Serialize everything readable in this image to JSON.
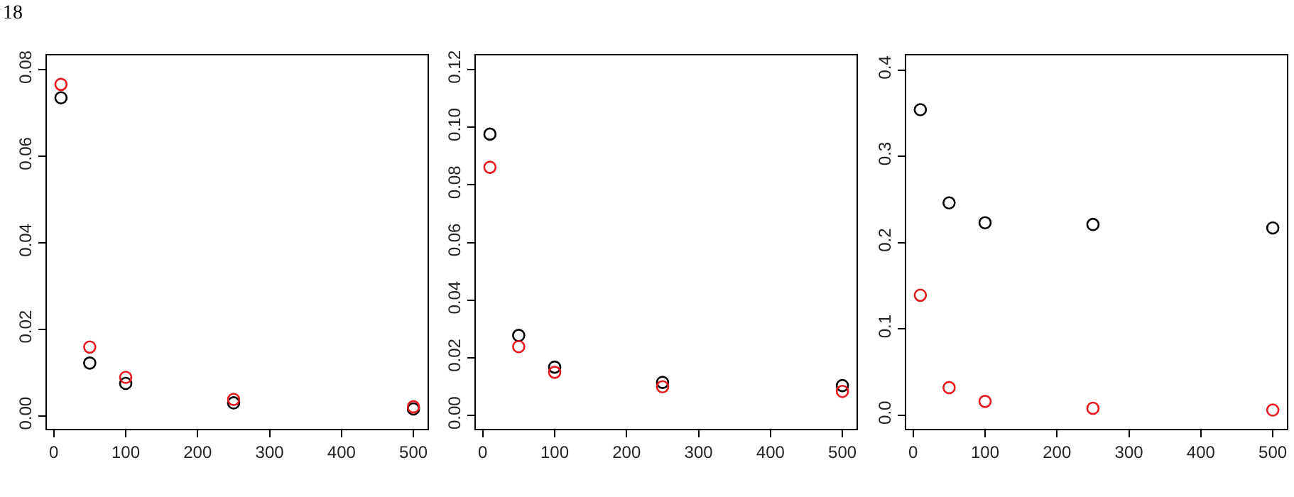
{
  "chart_data": [
    {
      "type": "scatter",
      "marker": "circle",
      "annotations": [
        "18"
      ],
      "x": [
        10,
        50,
        100,
        250,
        500
      ],
      "series": [
        {
          "color": "#000000",
          "values": [
            0.0735,
            0.0122,
            0.0075,
            0.003,
            0.0016
          ]
        },
        {
          "color": "#e8191e",
          "values": [
            0.0766,
            0.0159,
            0.0089,
            0.0038,
            0.0021
          ]
        }
      ],
      "xlim": [
        -9.6,
        519.6
      ],
      "xticks": [
        0,
        100,
        200,
        300,
        400,
        500
      ],
      "ylim": [
        -0.003,
        0.0833
      ],
      "yticks": [
        {
          "value": 0,
          "label": "0.00"
        },
        {
          "value": 0.02,
          "label": "0.02"
        },
        {
          "value": 0.04,
          "label": "0.04"
        },
        {
          "value": 0.06,
          "label": "0.06"
        },
        {
          "value": 0.08,
          "label": "0.08"
        }
      ]
    },
    {
      "type": "scatter",
      "marker": "circle",
      "x": [
        10,
        50,
        100,
        250,
        500
      ],
      "series": [
        {
          "color": "#000000",
          "values": [
            0.0976,
            0.0278,
            0.0168,
            0.0115,
            0.0104
          ]
        },
        {
          "color": "#e8191e",
          "values": [
            0.0861,
            0.0239,
            0.015,
            0.01,
            0.0084
          ]
        }
      ],
      "xlim": [
        -9.6,
        519.6
      ],
      "xticks": [
        0,
        100,
        200,
        300,
        400,
        500
      ],
      "ylim": [
        -0.0046,
        0.1249
      ],
      "yticks": [
        {
          "value": 0,
          "label": "0.00"
        },
        {
          "value": 0.02,
          "label": "0.02"
        },
        {
          "value": 0.04,
          "label": "0.04"
        },
        {
          "value": 0.06,
          "label": "0.06"
        },
        {
          "value": 0.08,
          "label": "0.08"
        },
        {
          "value": 0.1,
          "label": "0.10"
        },
        {
          "value": 0.12,
          "label": "0.12"
        }
      ]
    },
    {
      "type": "scatter",
      "marker": "circle",
      "x": [
        10,
        50,
        100,
        250,
        500
      ],
      "series": [
        {
          "color": "#000000",
          "values": [
            0.354,
            0.246,
            0.223,
            0.221,
            0.217
          ]
        },
        {
          "color": "#e8191e",
          "values": [
            0.139,
            0.032,
            0.016,
            0.008,
            0.006
          ]
        }
      ],
      "xlim": [
        -9.6,
        519.6
      ],
      "xticks": [
        0,
        100,
        200,
        300,
        400,
        500
      ],
      "ylim": [
        -0.0158,
        0.4169
      ],
      "yticks": [
        {
          "value": 0,
          "label": "0.0"
        },
        {
          "value": 0.1,
          "label": "0.1"
        },
        {
          "value": 0.2,
          "label": "0.2"
        },
        {
          "value": 0.3,
          "label": "0.3"
        },
        {
          "value": 0.4,
          "label": "0.4"
        }
      ]
    }
  ]
}
